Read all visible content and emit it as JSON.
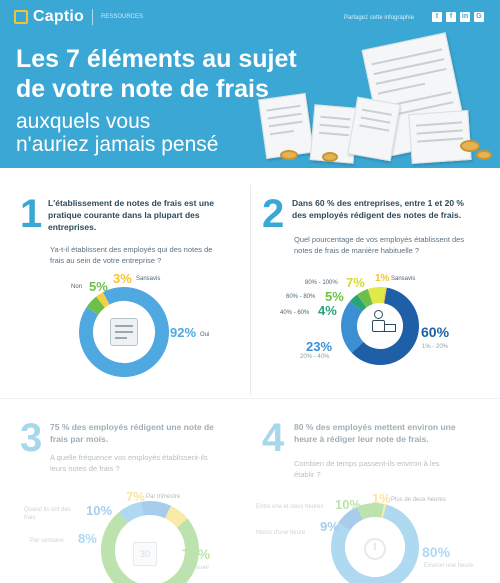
{
  "header": {
    "logo": "Captio",
    "logo_sub": "RESSOURCES",
    "share_text": "Partagez cette infographie",
    "social_icons": [
      "twitter-icon",
      "facebook-icon",
      "linkedin-icon",
      "googleplus-icon"
    ],
    "title_line1": "Les 7 éléments au sujet",
    "title_line2": "de votre note de frais",
    "subtitle_line1": "auxquels vous",
    "subtitle_line2": "n'auriez jamais pensé"
  },
  "colors": {
    "header_bg": "#3ba7d4",
    "blue_dark": "#1f78c1",
    "blue_light": "#4fa9e0",
    "green": "#6cc04a",
    "yellow": "#f4d03f",
    "teal": "#2aa37a",
    "text": "#2e4a5c"
  },
  "sections": [
    {
      "number": "1",
      "statement": [
        "L'établissement de notes de frais est une",
        "pratique courante dans la plupart des",
        "entreprises."
      ],
      "question": [
        "Ya-t-il établissent des employés qui des notes de",
        "frais au sein de votre entreprise ?"
      ],
      "slices": [
        {
          "label": "Oui",
          "pct": "92%",
          "value": 92,
          "color": "#4fa9e0"
        },
        {
          "label": "Non",
          "pct": "5%",
          "value": 5,
          "color": "#6cc04a"
        },
        {
          "label": "Sansavis",
          "pct": "3%",
          "value": 3,
          "color": "#f4d03f"
        }
      ]
    },
    {
      "number": "2",
      "statement": [
        "Dans 60 % des entreprises, entre 1 et 20 %",
        "des employés rédigent des notes de frais."
      ],
      "question": [
        "Quel pourcentage de vos employés établissent des",
        "notes de frais de manière habituelle ?"
      ],
      "slices": [
        {
          "label": "1% - 20%",
          "pct": "60%",
          "value": 60,
          "color": "#1f5fa8"
        },
        {
          "label": "20% - 40%",
          "pct": "23%",
          "value": 23,
          "color": "#3d8fd4"
        },
        {
          "label": "40% - 60%",
          "pct": "4%",
          "value": 4,
          "color": "#2aa37a"
        },
        {
          "label": "60% - 80%",
          "pct": "5%",
          "value": 5,
          "color": "#6cc04a"
        },
        {
          "label": "80% - 100%",
          "pct": "7%",
          "value": 7,
          "color": "#e0e84a"
        },
        {
          "label": "Sansavis",
          "pct": "1%",
          "value": 1,
          "color": "#f4d03f"
        }
      ]
    },
    {
      "number": "3",
      "statement": [
        "75 % des employés rédigent une note de",
        "frais par mois."
      ],
      "question": [
        "A quelle fréquence vos employés établissent-ils",
        "leurs notes de frais ?"
      ],
      "slices": [
        {
          "label": "Mensuel",
          "pct": "75%",
          "value": 75,
          "color": "#6cc04a"
        },
        {
          "label": "Par semaine",
          "pct": "8%",
          "value": 8,
          "color": "#4fa9e0"
        },
        {
          "label": "Quand ils ont des frais",
          "pct": "10%",
          "value": 10,
          "color": "#3d8fd4"
        },
        {
          "label": "Par trimestre",
          "pct": "7%",
          "value": 7,
          "color": "#f4d03f"
        }
      ],
      "icon_text": "30"
    },
    {
      "number": "4",
      "statement": [
        "80 % des employés mettent environ une",
        "heure à rédiger leur note de frais."
      ],
      "question": [
        "Combien de temps passent-ils environ à les",
        "établir ?"
      ],
      "slices": [
        {
          "label": "Environ une heure",
          "pct": "80%",
          "value": 80,
          "color": "#4fa9e0"
        },
        {
          "label": "Moins d'une heure",
          "pct": "9%",
          "value": 9,
          "color": "#3d8fd4"
        },
        {
          "label": "Entre une et deux heures",
          "pct": "10%",
          "value": 10,
          "color": "#6cc04a"
        },
        {
          "label": "Plus de deux heures",
          "pct": "1%",
          "value": 1,
          "color": "#f4d03f"
        }
      ]
    }
  ]
}
